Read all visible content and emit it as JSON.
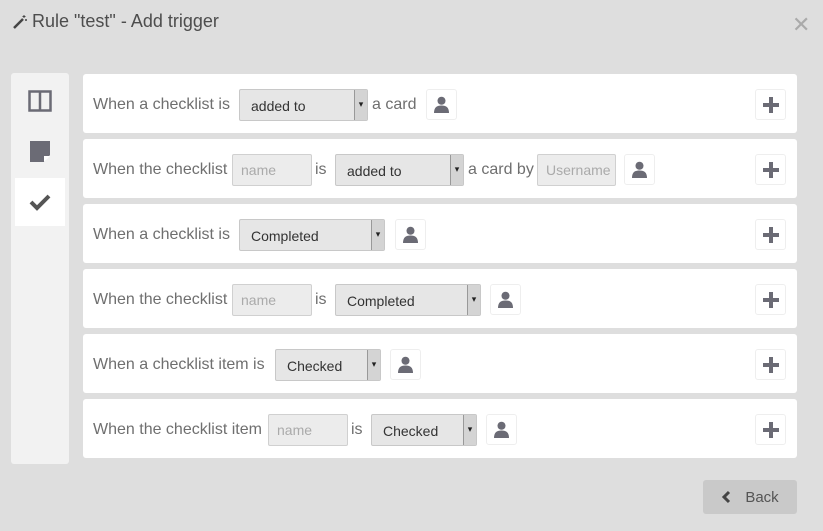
{
  "dialog": {
    "title": "Rule \"test\" - Add trigger",
    "title_icon": "magic-wand-icon",
    "close_icon": "close-icon"
  },
  "sidebar": {
    "items": [
      {
        "icon": "board-icon"
      },
      {
        "icon": "card-icon"
      },
      {
        "icon": "checkmark-icon",
        "active": true
      }
    ]
  },
  "rows": [
    {
      "text1": "When a checklist is",
      "select": "added to",
      "text2": "a card"
    },
    {
      "text1": "When the checklist",
      "name_placeholder": "name",
      "is": "is",
      "select": "added to",
      "text2": "a card by",
      "user_placeholder": "Username"
    },
    {
      "text1": "When a checklist is",
      "select": "Completed"
    },
    {
      "text1": "When the checklist",
      "name_placeholder": "name",
      "is": "is",
      "select": "Completed"
    },
    {
      "text1": "When a checklist item is",
      "select": "Checked"
    },
    {
      "text1": "When the checklist item",
      "name_placeholder": "name",
      "is": "is",
      "select": "Checked"
    }
  ],
  "footer": {
    "back_label": "Back"
  }
}
